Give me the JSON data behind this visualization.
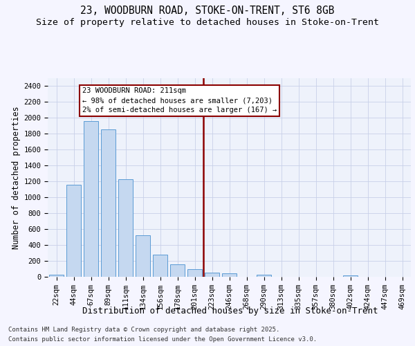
{
  "title1": "23, WOODBURN ROAD, STOKE-ON-TRENT, ST6 8GB",
  "title2": "Size of property relative to detached houses in Stoke-on-Trent",
  "xlabel": "Distribution of detached houses by size in Stoke-on-Trent",
  "ylabel": "Number of detached properties",
  "categories": [
    "22sqm",
    "44sqm",
    "67sqm",
    "89sqm",
    "111sqm",
    "134sqm",
    "156sqm",
    "178sqm",
    "201sqm",
    "223sqm",
    "246sqm",
    "268sqm",
    "290sqm",
    "313sqm",
    "335sqm",
    "357sqm",
    "380sqm",
    "402sqm",
    "424sqm",
    "447sqm",
    "469sqm"
  ],
  "values": [
    30,
    1160,
    1960,
    1850,
    1230,
    520,
    275,
    160,
    95,
    50,
    45,
    0,
    25,
    0,
    0,
    0,
    0,
    20,
    0,
    0,
    0
  ],
  "bar_color": "#c5d8f0",
  "bar_edge_color": "#5b9bd5",
  "vline_color": "#8b0000",
  "vline_pos": 8.5,
  "annotation_text1": "23 WOODBURN ROAD: 211sqm",
  "annotation_text2": "← 98% of detached houses are smaller (7,203)",
  "annotation_text3": "2% of semi-detached houses are larger (167) →",
  "annotation_box_color": "#8b0000",
  "ylim": [
    0,
    2500
  ],
  "yticks": [
    0,
    200,
    400,
    600,
    800,
    1000,
    1200,
    1400,
    1600,
    1800,
    2000,
    2200,
    2400
  ],
  "footer1": "Contains HM Land Registry data © Crown copyright and database right 2025.",
  "footer2": "Contains public sector information licensed under the Open Government Licence v3.0.",
  "bg_color": "#eef2fb",
  "grid_color": "#c8d0e8",
  "fig_bg_color": "#f5f5ff",
  "title_fontsize": 10.5,
  "subtitle_fontsize": 9.5,
  "axis_label_fontsize": 8.5,
  "tick_fontsize": 7.5,
  "annotation_fontsize": 7.5,
  "footer_fontsize": 6.5
}
